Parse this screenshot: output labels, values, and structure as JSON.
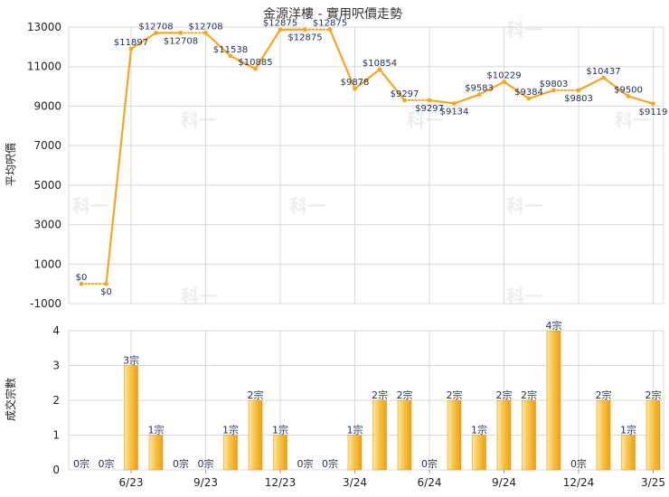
{
  "chart_data": [
    {
      "type": "line",
      "title": "金源洋樓 - 實用呎價走勢",
      "ylabel": "平均呎價",
      "ylim": [
        -1000,
        13000
      ],
      "yticks": [
        -1000,
        1000,
        3000,
        5000,
        7000,
        9000,
        11000,
        13000
      ],
      "grid": true,
      "color": "#f5a623",
      "series": [
        {
          "values": [
            0,
            0,
            11897,
            12708,
            12708,
            12708,
            11538,
            10885,
            12875,
            12875,
            12875,
            9878,
            10854,
            9297,
            9297,
            9134,
            9583,
            10229,
            9384,
            9803,
            9803,
            10437,
            9500,
            9119
          ],
          "labels": [
            "$0",
            "$0",
            "$11897",
            "$12708",
            "$12708",
            "$12708",
            "$11538",
            "$10885",
            "$12875",
            "$12875",
            "$12875",
            "$9878",
            "$10854",
            "$9297",
            "$9297",
            "$9134",
            "$9583",
            "$10229",
            "$9384",
            "$9803",
            "$9803",
            "$10437",
            "$9500",
            "$9119"
          ],
          "dotted_segments": [
            0,
            4,
            9,
            13,
            19
          ]
        }
      ]
    },
    {
      "type": "bar",
      "ylabel": "成交宗數",
      "ylim": [
        0,
        4
      ],
      "yticks": [
        0,
        1,
        2,
        3,
        4
      ],
      "grid": true,
      "categories": [
        "6/23",
        "9/23",
        "12/23",
        "3/24",
        "6/24",
        "9/24",
        "12/24",
        "3/25"
      ],
      "values": [
        0,
        0,
        3,
        1,
        0,
        0,
        1,
        2,
        1,
        0,
        0,
        1,
        2,
        2,
        0,
        2,
        1,
        2,
        2,
        4,
        0,
        2,
        1,
        2
      ],
      "labels": [
        "0宗",
        "0宗",
        "3宗",
        "1宗",
        "0宗",
        "0宗",
        "1宗",
        "2宗",
        "1宗",
        "0宗",
        "0宗",
        "1宗",
        "2宗",
        "2宗",
        "0宗",
        "2宗",
        "1宗",
        "2宗",
        "2宗",
        "4宗",
        "0宗",
        "2宗",
        "1宗",
        "2宗"
      ]
    }
  ],
  "watermark": "科一",
  "colors": {
    "line": "#f5a623",
    "bar_light": "#fde9a6",
    "bar_dark": "#f0a416",
    "grid": "#d8d8d8",
    "label": "#1c2f57"
  }
}
